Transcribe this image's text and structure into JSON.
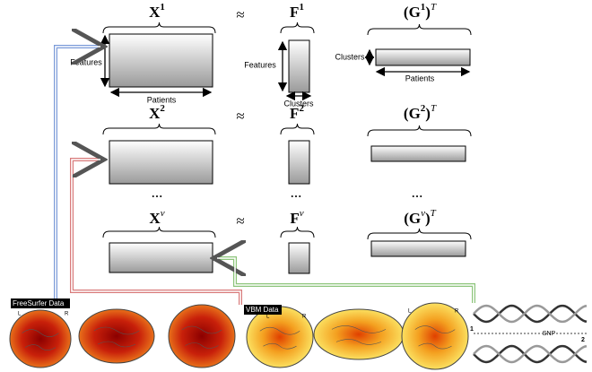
{
  "rows": [
    {
      "x": "X",
      "x_sup": "1",
      "approx": "≈",
      "f": "F",
      "f_sup": "1",
      "g_open": "(G",
      "g_sup": "1",
      "g_close": ")",
      "g_t": "T"
    },
    {
      "x": "X",
      "x_sup": "2",
      "approx": "≈",
      "f": "F",
      "f_sup": "2",
      "g_open": "(G",
      "g_sup": "2",
      "g_close": ")",
      "g_t": "T"
    },
    {
      "x": "X",
      "x_sup": "v",
      "approx": "≈",
      "f": "F",
      "f_sup": "v",
      "g_open": "(G",
      "g_sup": "v",
      "g_close": ")",
      "g_t": "T"
    }
  ],
  "dims": {
    "x_features": "Features",
    "x_patients": "Patients",
    "f_features": "Features",
    "f_clusters": "Clusters",
    "g_clusters": "Clusters",
    "g_patients": "Patients"
  },
  "ellipsis": [
    "...",
    "...",
    "..."
  ],
  "sources": {
    "freesurfer": "FreeSurfer Data",
    "vbm": "VBM Data",
    "snp": "SNP",
    "strand_1": "1",
    "strand_2": "2"
  },
  "hemi": {
    "left": "L",
    "right": "R"
  }
}
